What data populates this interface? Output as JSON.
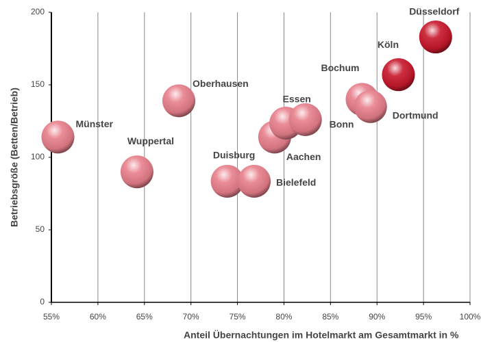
{
  "chart_data": {
    "type": "scatter",
    "x_label": "Anteil Übernachtungen im Hotelmarkt am Gesamtmarkt in %",
    "y_label": "Betriebsgröße (Betten/Betrieb)",
    "point_labels": [
      "Münster",
      "Wuppertal",
      "Oberhausen",
      "Duisburg",
      "Bielefeld",
      "Aachen",
      "Essen",
      "Bonn",
      "Bochum",
      "Dortmund",
      "Köln",
      "Düsseldorf"
    ],
    "x": [
      55.7,
      64.2,
      68.7,
      73.9,
      76.8,
      79.0,
      80.2,
      82.3,
      88.4,
      89.3,
      92.3,
      96.3
    ],
    "values": [
      114,
      90,
      139,
      83.5,
      83.5,
      114,
      123.6,
      126,
      140,
      135,
      157,
      183
    ],
    "colors": [
      "#e8808c",
      "#e8808c",
      "#e8808c",
      "#e8808c",
      "#e8808c",
      "#e8808c",
      "#e8808c",
      "#e8808c",
      "#e8808c",
      "#e8808c",
      "#c8182c",
      "#c8182c"
    ],
    "xlim": [
      55,
      100
    ],
    "xticks": [
      {
        "value": 55,
        "label": "55%"
      },
      {
        "value": 60,
        "label": "60%"
      },
      {
        "value": 65,
        "label": "65%"
      },
      {
        "value": 70,
        "label": "70%"
      },
      {
        "value": 75,
        "label": "75%"
      },
      {
        "value": 80,
        "label": "80%"
      },
      {
        "value": 85,
        "label": "85%"
      },
      {
        "value": 90,
        "label": "90%"
      },
      {
        "value": 95,
        "label": "95%"
      },
      {
        "value": 100,
        "label": "100%"
      }
    ],
    "ylim": [
      0,
      200
    ],
    "yticks": [
      0,
      50,
      100,
      150,
      200
    ],
    "grid": true
  }
}
